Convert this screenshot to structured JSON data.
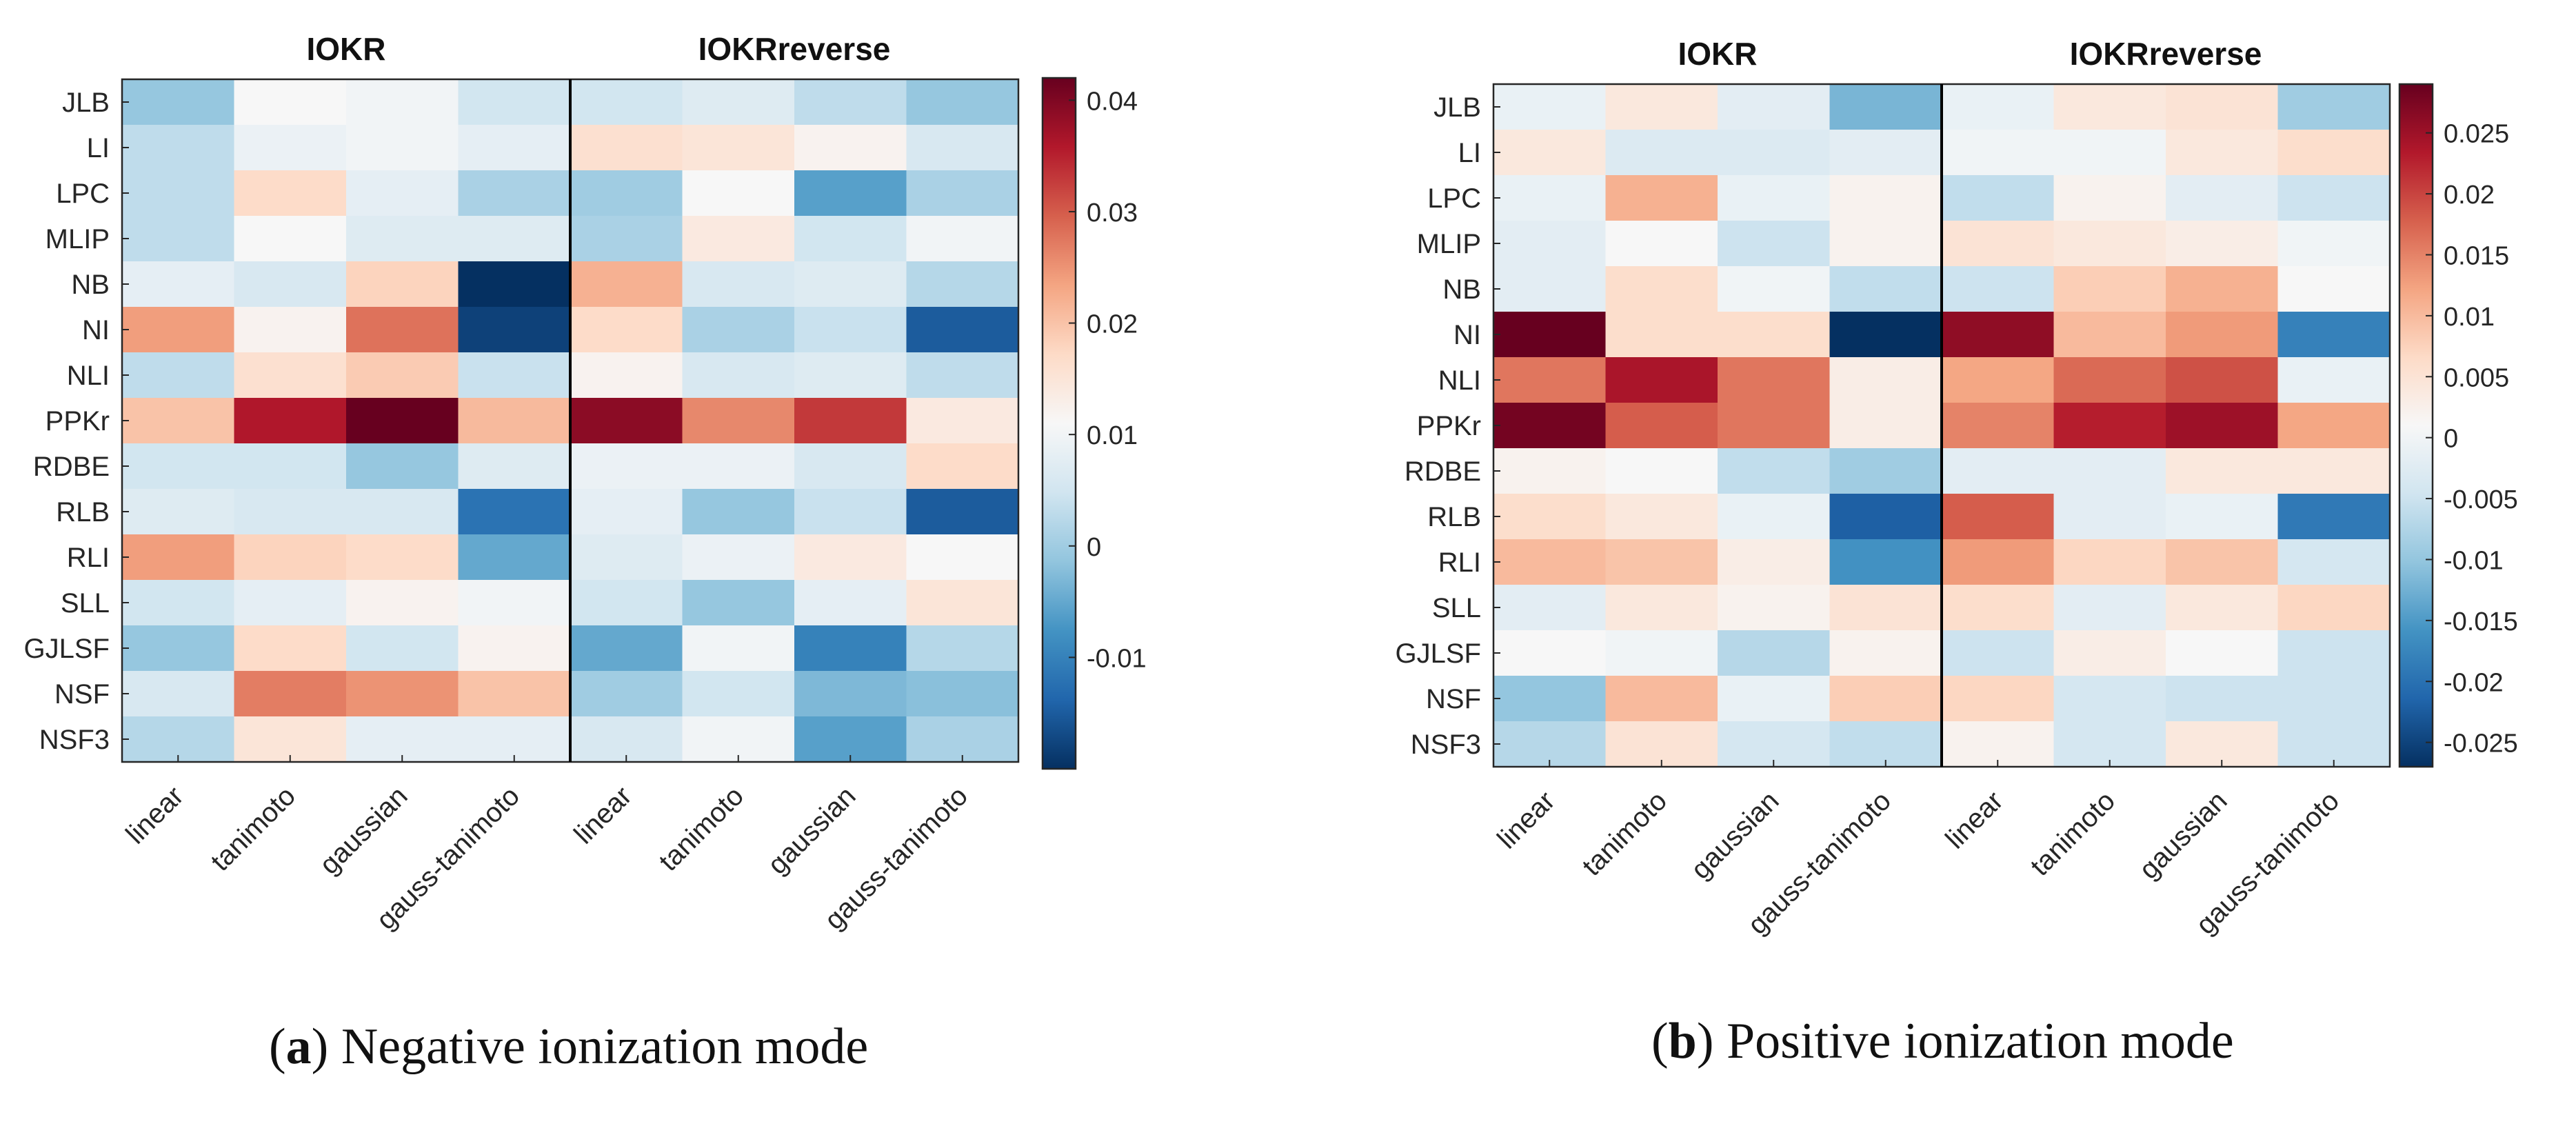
{
  "chart_data": [
    {
      "type": "heatmap",
      "panel": "a",
      "caption_letter": "a",
      "caption_text": "Negative ionization mode",
      "group_titles": [
        "IOKR",
        "IOKRreverse"
      ],
      "rows": [
        "JLB",
        "LI",
        "LPC",
        "MLIP",
        "NB",
        "NI",
        "NLI",
        "PPKr",
        "RDBE",
        "RLB",
        "RLI",
        "SLL",
        "GJLSF",
        "NSF",
        "NSF3"
      ],
      "columns": [
        "linear",
        "tanimoto",
        "gaussian",
        "gauss-tanimoto",
        "linear",
        "tanimoto",
        "gaussian",
        "gauss-tanimoto"
      ],
      "colorbar": {
        "min": -0.02,
        "max": 0.042,
        "ticks": [
          -0.01,
          0,
          0.01,
          0.02,
          0.03,
          0.04
        ],
        "tick_labels": [
          "-0.01",
          "0",
          "0.01",
          "0.02",
          "0.03",
          "0.04"
        ]
      },
      "values": [
        [
          -0.001,
          0.011,
          0.01,
          0.005,
          0.005,
          0.007,
          0.003,
          -0.001
        ],
        [
          0.003,
          0.009,
          0.01,
          0.008,
          0.016,
          0.015,
          0.012,
          0.006
        ],
        [
          0.003,
          0.017,
          0.008,
          0.001,
          0.0,
          0.011,
          -0.006,
          0.001
        ],
        [
          0.003,
          0.011,
          0.007,
          0.007,
          0.001,
          0.014,
          0.005,
          0.01
        ],
        [
          0.008,
          0.006,
          0.018,
          -0.02,
          0.022,
          0.006,
          0.007,
          0.002
        ],
        [
          0.024,
          0.012,
          0.028,
          -0.018,
          0.017,
          0.001,
          0.004,
          -0.015
        ],
        [
          0.003,
          0.016,
          0.019,
          0.004,
          0.012,
          0.006,
          0.007,
          0.003
        ],
        [
          0.02,
          0.036,
          0.042,
          0.021,
          0.039,
          0.026,
          0.033,
          0.014
        ],
        [
          0.005,
          0.005,
          -0.001,
          0.007,
          0.009,
          0.009,
          0.006,
          0.017
        ],
        [
          0.007,
          0.006,
          0.006,
          -0.012,
          0.008,
          -0.001,
          0.004,
          -0.015
        ],
        [
          0.024,
          0.018,
          0.017,
          -0.005,
          0.007,
          0.009,
          0.014,
          0.011
        ],
        [
          0.005,
          0.008,
          0.012,
          0.01,
          0.005,
          -0.001,
          0.008,
          0.015
        ],
        [
          -0.001,
          0.017,
          0.005,
          0.012,
          -0.005,
          0.01,
          -0.01,
          0.002
        ],
        [
          0.006,
          0.027,
          0.025,
          0.02,
          0.0,
          0.005,
          -0.003,
          -0.002
        ],
        [
          0.002,
          0.015,
          0.008,
          0.008,
          0.006,
          0.01,
          -0.006,
          0.001
        ]
      ]
    },
    {
      "type": "heatmap",
      "panel": "b",
      "caption_letter": "b",
      "caption_text": "Positive ionization mode",
      "group_titles": [
        "IOKR",
        "IOKRreverse"
      ],
      "rows": [
        "JLB",
        "LI",
        "LPC",
        "MLIP",
        "NB",
        "NI",
        "NLI",
        "PPKr",
        "RDBE",
        "RLB",
        "RLI",
        "SLL",
        "GJLSF",
        "NSF",
        "NSF3"
      ],
      "columns": [
        "linear",
        "tanimoto",
        "gaussian",
        "gauss-tanimoto",
        "linear",
        "tanimoto",
        "gaussian",
        "gauss-tanimoto"
      ],
      "colorbar": {
        "min": -0.027,
        "max": 0.029,
        "ticks": [
          -0.025,
          -0.02,
          -0.015,
          -0.01,
          -0.005,
          0,
          0.005,
          0.01,
          0.015,
          0.02,
          0.025
        ],
        "tick_labels": [
          "-0.025",
          "-0.02",
          "-0.015",
          "-0.01",
          "-0.005",
          "0",
          "0.005",
          "0.01",
          "0.015",
          "0.02",
          "0.025"
        ]
      },
      "values": [
        [
          -0.001,
          0.004,
          -0.002,
          -0.012,
          -0.001,
          0.004,
          0.005,
          -0.009
        ],
        [
          0.004,
          -0.003,
          -0.003,
          -0.002,
          0.0,
          0.0,
          0.004,
          0.006
        ],
        [
          -0.001,
          0.011,
          -0.001,
          0.002,
          -0.006,
          0.002,
          -0.002,
          -0.005
        ],
        [
          -0.002,
          0.001,
          -0.005,
          0.002,
          0.005,
          0.004,
          0.003,
          0.0
        ],
        [
          -0.002,
          0.006,
          0.0,
          -0.006,
          -0.005,
          0.008,
          0.011,
          0.001
        ],
        [
          0.029,
          0.006,
          0.006,
          -0.027,
          0.026,
          0.01,
          0.013,
          -0.018
        ],
        [
          0.016,
          0.024,
          0.016,
          0.003,
          0.012,
          0.017,
          0.019,
          -0.001
        ],
        [
          0.028,
          0.018,
          0.016,
          0.003,
          0.015,
          0.023,
          0.025,
          0.012
        ],
        [
          0.002,
          0.001,
          -0.006,
          -0.009,
          -0.002,
          -0.002,
          0.004,
          0.004
        ],
        [
          0.006,
          0.004,
          -0.001,
          -0.022,
          0.018,
          -0.002,
          -0.001,
          -0.019
        ],
        [
          0.01,
          0.009,
          0.003,
          -0.016,
          0.013,
          0.007,
          0.009,
          -0.004
        ],
        [
          -0.002,
          0.004,
          0.002,
          0.005,
          0.006,
          -0.002,
          0.004,
          0.007
        ],
        [
          0.001,
          0.0,
          -0.007,
          0.002,
          -0.005,
          0.003,
          0.001,
          -0.005
        ],
        [
          -0.01,
          0.01,
          -0.001,
          0.008,
          0.007,
          -0.004,
          -0.005,
          -0.005
        ],
        [
          -0.007,
          0.005,
          -0.004,
          -0.006,
          0.002,
          -0.004,
          0.004,
          -0.005
        ]
      ]
    }
  ],
  "colors": {
    "stops": [
      "#053061",
      "#2166ac",
      "#4393c3",
      "#92c5de",
      "#d1e5f0",
      "#f7f7f7",
      "#fddbc7",
      "#f4a582",
      "#d6604d",
      "#b2182b",
      "#67001f"
    ],
    "axis": "#262626",
    "divider": "#000000"
  }
}
